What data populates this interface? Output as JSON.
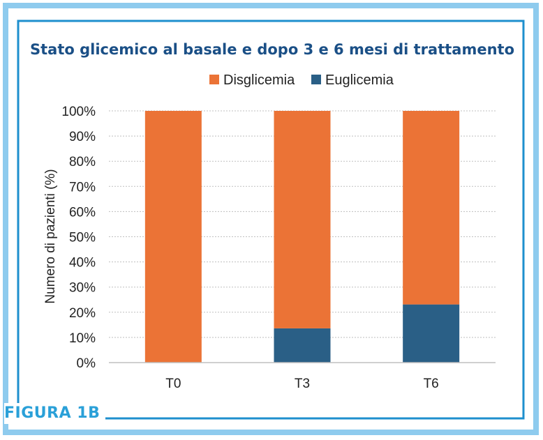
{
  "figure_label": "FIGURA 1B",
  "colors": {
    "frame_outer": "#8ecbee",
    "frame_inner": "#1e8fce",
    "disglicemia": "#eb7336",
    "euglicemia": "#2a5f86",
    "title": "#1a4f86",
    "text": "#222222",
    "grid": "#bfbfbf"
  },
  "chart_data": {
    "type": "bar",
    "stacked": true,
    "title": "Stato glicemico al basale e dopo 3 e 6 mesi di trattamento",
    "xlabel": "",
    "ylabel": "Numero di pazienti (%)",
    "categories": [
      "T0",
      "T3",
      "T6"
    ],
    "series": [
      {
        "name": "Euglicemia",
        "values": [
          0,
          13.6,
          23.1
        ]
      },
      {
        "name": "Disglicemia",
        "values": [
          100,
          86.4,
          76.9
        ]
      }
    ],
    "ylim": [
      0,
      100
    ],
    "yticks": [
      "0%",
      "10%",
      "20%",
      "30%",
      "40%",
      "50%",
      "60%",
      "70%",
      "80%",
      "90%",
      "100%"
    ],
    "legend": [
      "Disglicemia",
      "Euglicemia"
    ],
    "legend_position": "top",
    "grid": true
  }
}
